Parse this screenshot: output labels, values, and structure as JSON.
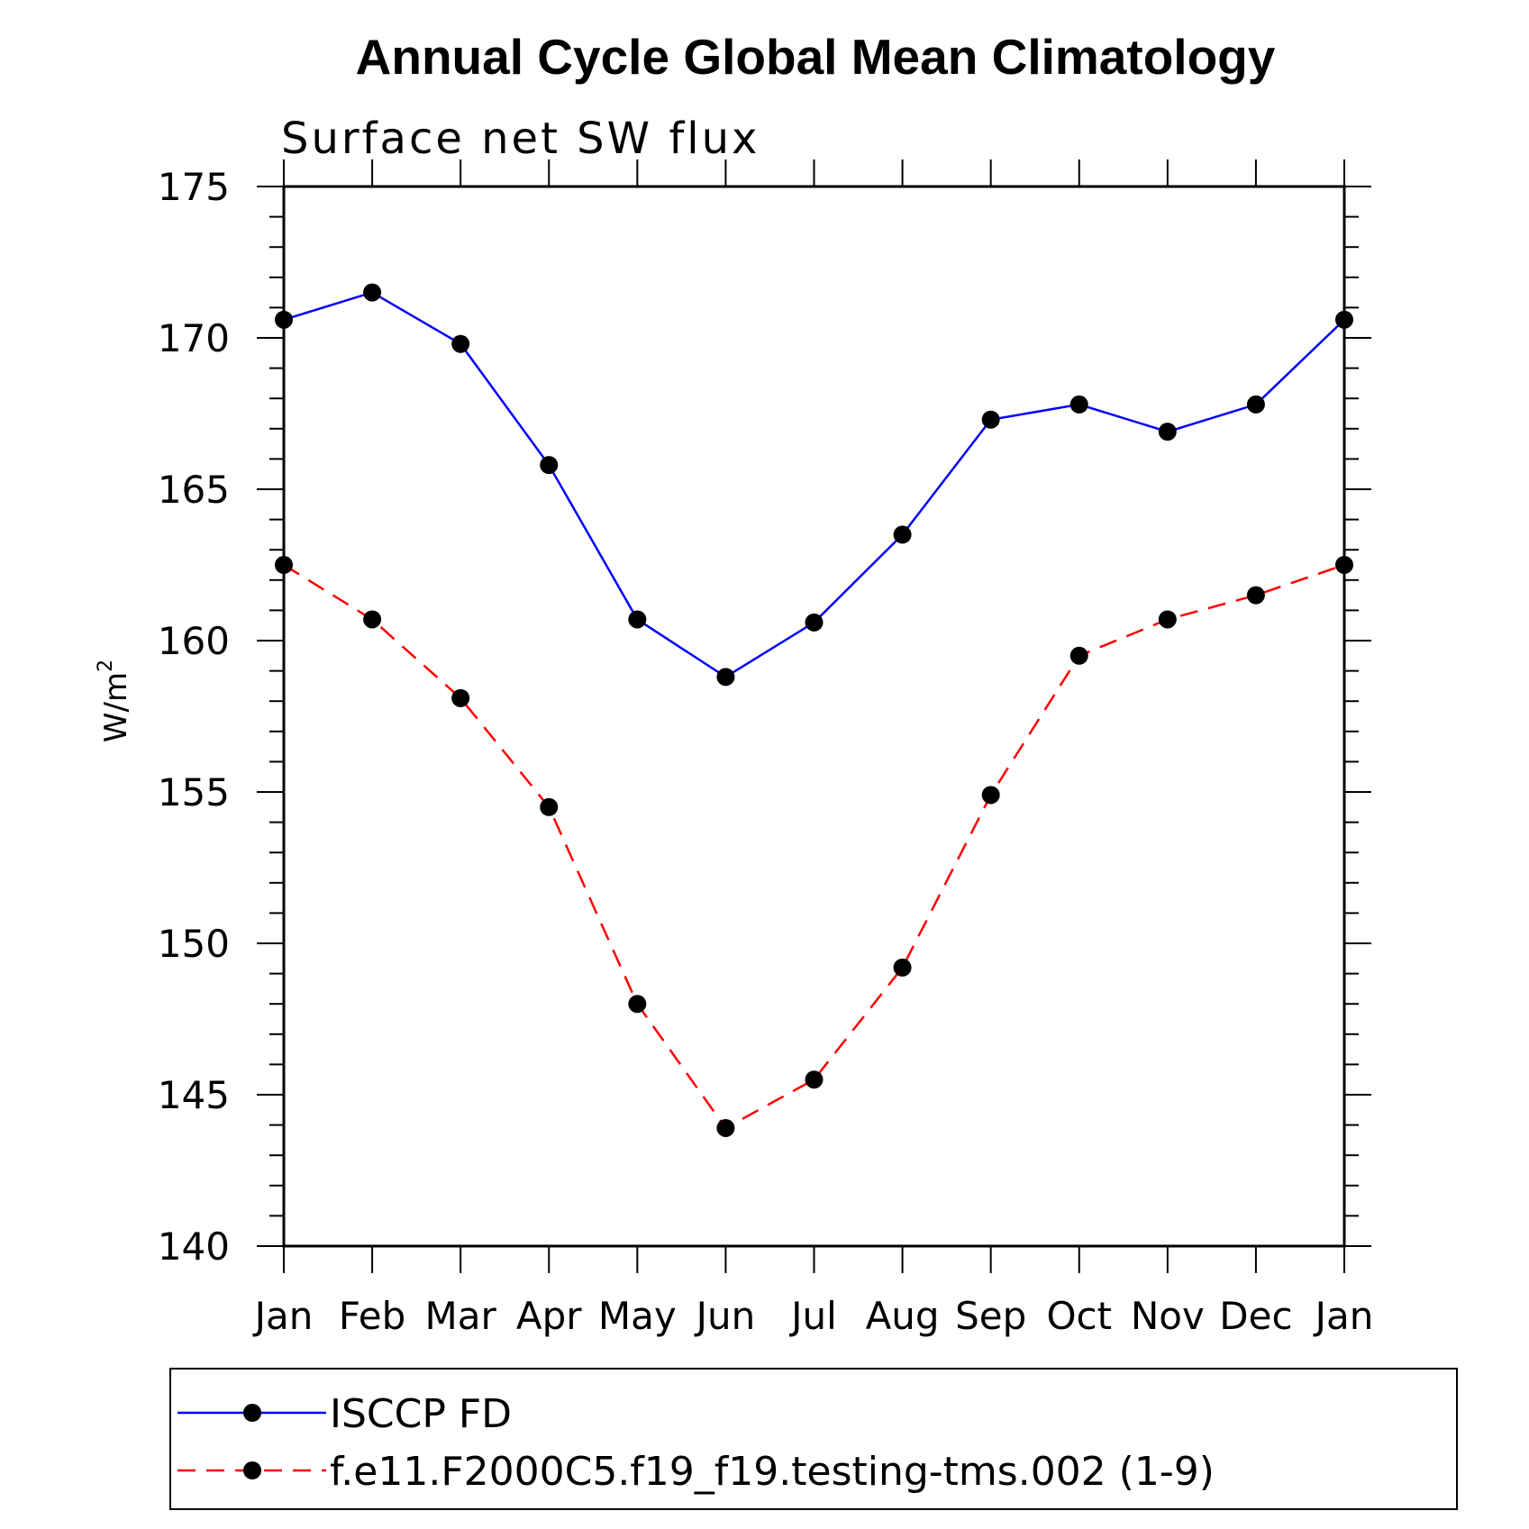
{
  "chart_data": {
    "type": "line",
    "title": "Annual Cycle Global Mean Climatology",
    "subtitle": "Surface net SW flux",
    "xlabel": "",
    "ylabel": "W/m",
    "ylabel_superscript": "2",
    "ylim": [
      140,
      175
    ],
    "yticks": [
      140,
      145,
      150,
      155,
      160,
      165,
      170,
      175
    ],
    "categories": [
      "Jan",
      "Feb",
      "Mar",
      "Apr",
      "May",
      "Jun",
      "Jul",
      "Aug",
      "Sep",
      "Oct",
      "Nov",
      "Dec",
      "Jan"
    ],
    "series": [
      {
        "name": "ISCCP FD",
        "color": "#0000ff",
        "dash": "solid",
        "values": [
          170.6,
          171.5,
          169.8,
          165.8,
          160.7,
          158.8,
          160.6,
          163.5,
          167.3,
          167.8,
          166.9,
          167.8,
          170.6
        ]
      },
      {
        "name": "f.e11.F2000C5.f19_f19.testing-tms.002 (1-9)",
        "color": "#ff0000",
        "dash": "dashed",
        "values": [
          162.5,
          160.7,
          158.1,
          154.5,
          148.0,
          143.9,
          145.5,
          149.2,
          154.9,
          159.5,
          160.7,
          161.5,
          162.5
        ]
      }
    ]
  }
}
